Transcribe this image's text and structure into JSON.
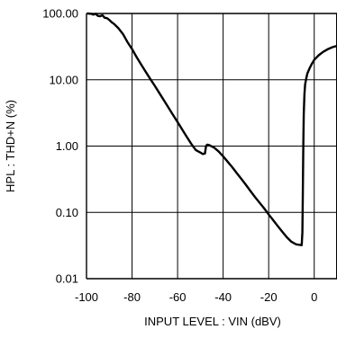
{
  "chart_data": {
    "type": "line",
    "title": "",
    "xlabel": "INPUT LEVEL : VIN (dBV)",
    "ylabel": "HPL : THD+N (%)",
    "xlim": [
      -100,
      10
    ],
    "ylim": [
      0.01,
      100
    ],
    "yscale": "log",
    "grid": true,
    "x_ticks": [
      -100,
      -80,
      -60,
      -40,
      -20,
      0
    ],
    "x_tick_labels": [
      "-100",
      "-80",
      "-60",
      "-40",
      "-20",
      "0"
    ],
    "y_ticks": [
      0.01,
      0.1,
      1,
      10,
      100
    ],
    "y_tick_labels": [
      "0.01",
      "0.10",
      "1.00",
      "10.00",
      "100.00"
    ],
    "series": [
      {
        "color": "#000000",
        "points": [
          [
            -99.5,
            100
          ],
          [
            -98,
            99
          ],
          [
            -97,
            96
          ],
          [
            -96,
            99
          ],
          [
            -95,
            92
          ],
          [
            -94,
            91
          ],
          [
            -93,
            94
          ],
          [
            -92,
            86
          ],
          [
            -91,
            85
          ],
          [
            -90,
            80
          ],
          [
            -89,
            74
          ],
          [
            -88,
            70
          ],
          [
            -86,
            60
          ],
          [
            -84,
            49
          ],
          [
            -82,
            37
          ],
          [
            -80,
            29
          ],
          [
            -78,
            22
          ],
          [
            -76,
            17
          ],
          [
            -74,
            13.2
          ],
          [
            -72,
            10.3
          ],
          [
            -70,
            8.1
          ],
          [
            -68,
            6.3
          ],
          [
            -66,
            4.9
          ],
          [
            -64,
            3.8
          ],
          [
            -62,
            2.95
          ],
          [
            -60,
            2.3
          ],
          [
            -58,
            1.78
          ],
          [
            -56,
            1.38
          ],
          [
            -54,
            1.08
          ],
          [
            -52,
            0.87
          ],
          [
            -50,
            0.8
          ],
          [
            -49,
            0.76
          ],
          [
            -48,
            0.77
          ],
          [
            -47.5,
            1.0
          ],
          [
            -47,
            1.05
          ],
          [
            -46,
            1.03
          ],
          [
            -44,
            0.95
          ],
          [
            -42,
            0.83
          ],
          [
            -40,
            0.7
          ],
          [
            -38,
            0.58
          ],
          [
            -36,
            0.48
          ],
          [
            -34,
            0.39
          ],
          [
            -32,
            0.32
          ],
          [
            -30,
            0.26
          ],
          [
            -28,
            0.21
          ],
          [
            -26,
            0.17
          ],
          [
            -24,
            0.14
          ],
          [
            -22,
            0.115
          ],
          [
            -20,
            0.093
          ],
          [
            -18,
            0.076
          ],
          [
            -16,
            0.062
          ],
          [
            -14,
            0.051
          ],
          [
            -12,
            0.042
          ],
          [
            -10,
            0.036
          ],
          [
            -8,
            0.033
          ],
          [
            -5.5,
            0.032
          ],
          [
            -5.2,
            0.05
          ],
          [
            -5,
            0.2
          ],
          [
            -4.8,
            1.0
          ],
          [
            -4.6,
            3.0
          ],
          [
            -4.3,
            6.0
          ],
          [
            -4,
            8.5
          ],
          [
            -3.5,
            10.5
          ],
          [
            -3,
            12.5
          ],
          [
            -2,
            15
          ],
          [
            -1,
            17.5
          ],
          [
            0,
            20
          ],
          [
            2,
            23.5
          ],
          [
            4,
            26.5
          ],
          [
            6,
            29
          ],
          [
            8,
            31
          ],
          [
            10,
            32.5
          ]
        ]
      }
    ]
  }
}
